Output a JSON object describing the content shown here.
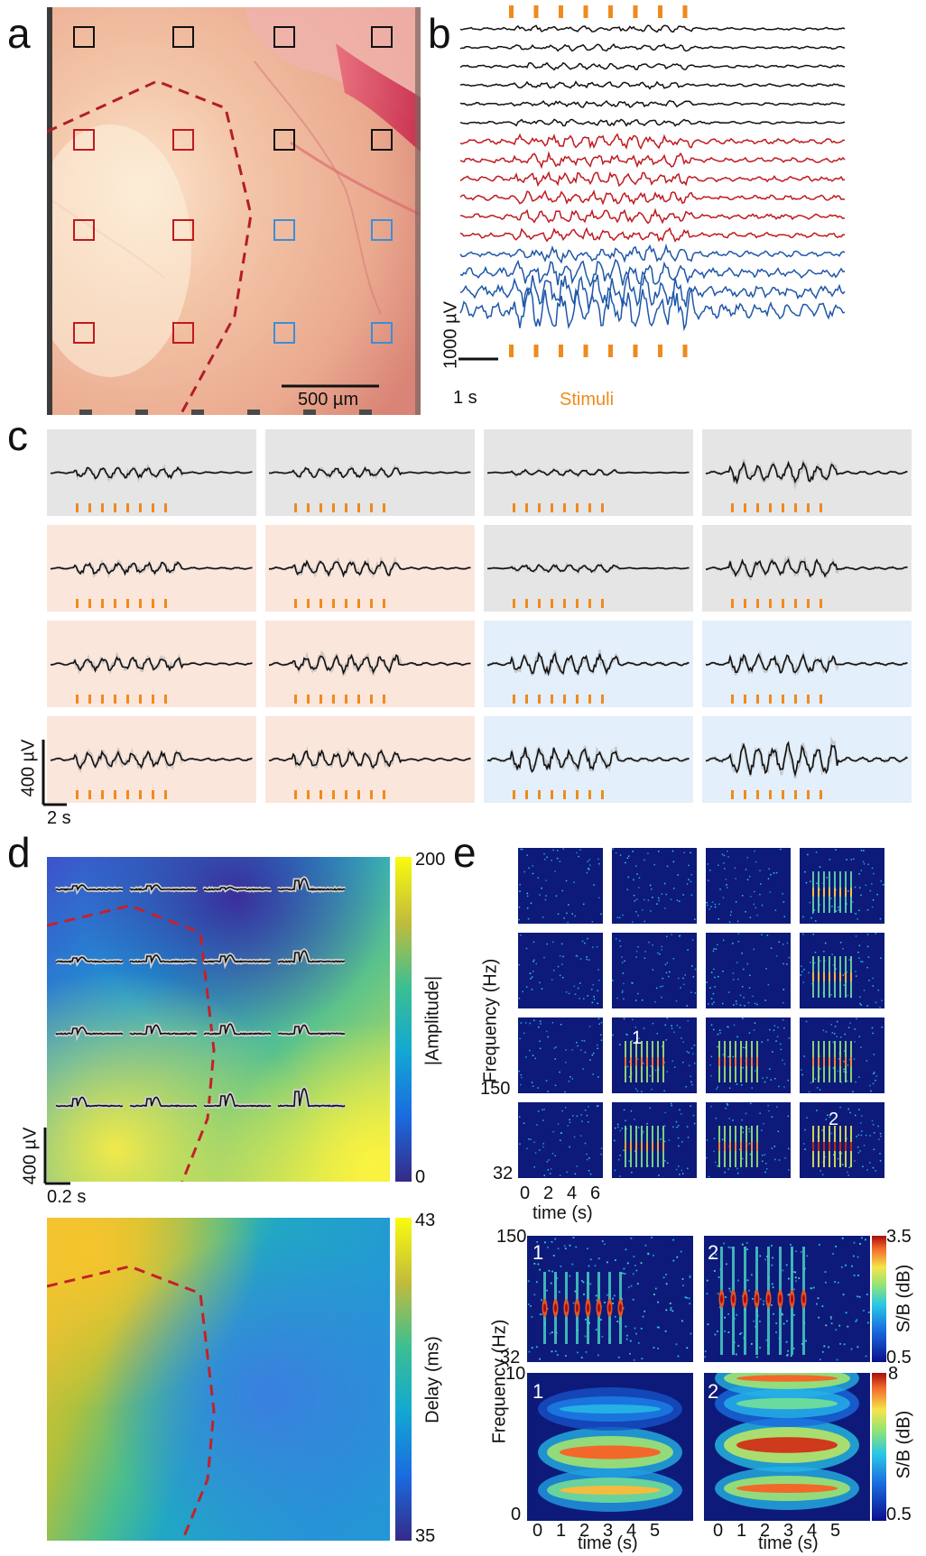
{
  "panels": {
    "a": {
      "letter": "a",
      "scale_label": "500 µm",
      "electrode_colors": [
        [
          "#111111",
          "#111111",
          "#111111",
          "#111111"
        ],
        [
          "#c0191f",
          "#c0191f",
          "#111111",
          "#111111"
        ],
        [
          "#c0191f",
          "#c0191f",
          "#3a8fd8",
          "#3a8fd8"
        ],
        [
          "#c0191f",
          "#c0191f",
          "#3a8fd8",
          "#3a8fd8"
        ]
      ]
    },
    "b": {
      "letter": "b",
      "scale_y": "1000 µV",
      "scale_x": "1 s",
      "stimuli_label": "Stimuli",
      "trace_colors": [
        "#111111",
        "#111111",
        "#111111",
        "#111111",
        "#111111",
        "#111111",
        "#c0191f",
        "#c0191f",
        "#c0191f",
        "#c0191f",
        "#c0191f",
        "#c0191f",
        "#1f57a8",
        "#1f57a8",
        "#1f57a8",
        "#1f57a8"
      ],
      "stimulus_count": 8
    },
    "c": {
      "letter": "c",
      "scale_y": "400 µV",
      "scale_x": "2 s",
      "cell_colors": [
        [
          "#e5e5e5",
          "#e5e5e5",
          "#e5e5e5",
          "#e5e5e5"
        ],
        [
          "#fbe6dc",
          "#fbe6dc",
          "#e5e5e5",
          "#e5e5e5"
        ],
        [
          "#fbe6dc",
          "#fbe6dc",
          "#e3effa",
          "#e3effa"
        ],
        [
          "#fbe6dc",
          "#fbe6dc",
          "#e3effa",
          "#e3effa"
        ]
      ],
      "amplitudes": [
        [
          0.45,
          0.4,
          0.25,
          0.8
        ],
        [
          0.5,
          0.6,
          0.3,
          0.75
        ],
        [
          0.6,
          0.75,
          0.85,
          0.75
        ],
        [
          0.7,
          0.7,
          1.0,
          1.35
        ]
      ]
    },
    "d": {
      "letter": "d",
      "amp_colorbar_label": "|Amplitude|",
      "amp_max": "200",
      "amp_min": "0",
      "scale_y": "400 µV",
      "scale_x": "0.2 s",
      "delay_colorbar_label": "Delay (ms)",
      "delay_max": "43",
      "delay_min": "35"
    },
    "e": {
      "letter": "e",
      "freq_label": "Frequency (Hz)",
      "freq_top": "150",
      "freq_bottom": "32",
      "time_label": "time (s)",
      "time_ticks": [
        "0",
        "2",
        "4",
        "6"
      ],
      "marker_1": "1",
      "marker_2": "2",
      "zoom_freq_top": "150",
      "zoom_freq_bottom": "32",
      "zoom_cb_label": "S/B (dB)",
      "zoom_cb_max": "3.5",
      "zoom_cb_min": "0.5",
      "low_freq_top": "10",
      "low_freq_bottom": "0",
      "low_cb_label": "S/B (dB)",
      "low_cb_max": "8",
      "low_cb_min": "0.5",
      "low_time_ticks": [
        "0",
        "1",
        "2",
        "3",
        "4",
        "5"
      ],
      "low_time_label": "time (s)"
    }
  }
}
